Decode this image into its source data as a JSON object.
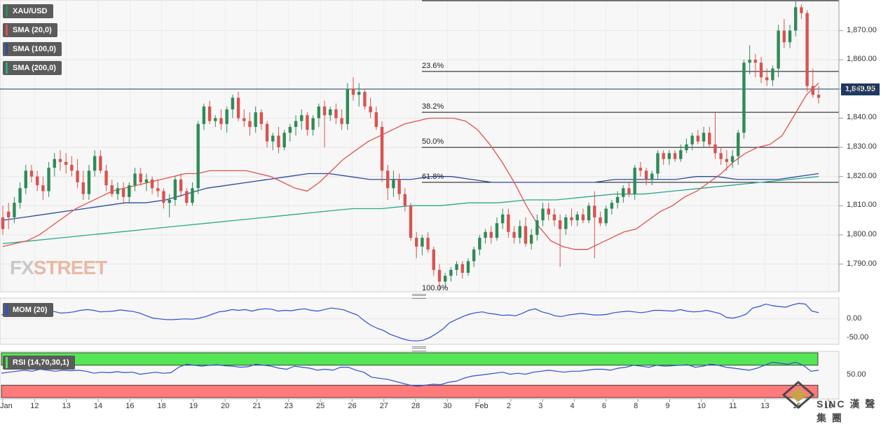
{
  "colors": {
    "sma20": "#e0524a",
    "sma100": "#2c4aa0",
    "sma200": "#2aa98a",
    "mom": "#2b4fd6",
    "rsi": "#2b4fd6",
    "bull": "#2e8b57",
    "bear": "#d9534f",
    "current_price_line": "#1f3864",
    "rsi_overbought_zone": "#55e655",
    "rsi_oversold_zone": "#ff7a7a"
  },
  "legend": {
    "symbol": "XAU/USD",
    "sma20": "SMA (20,0)",
    "sma100": "SMA (100,0)",
    "sma200": "SMA (200,0)",
    "mom": "MOM (20)",
    "rsi": "RSI (14,70,30,1)"
  },
  "current_price": "1,849.95",
  "watermark": {
    "fx": "FX",
    "street": "STREET"
  },
  "branding": "漢 聲 集 團",
  "branding_mark": "SINC",
  "chart_data": [
    {
      "type": "candlestick",
      "title": "XAU/USD",
      "ylim": [
        1781,
        1880
      ],
      "yticks": [
        1790,
        1800,
        1810,
        1820,
        1830,
        1840,
        1850,
        1860,
        1870
      ],
      "ytick_labels": [
        "1,790.00",
        "1,800.00",
        "1,810.00",
        "1,820.00",
        "1,830.00",
        "1,840.00",
        "1,850.00",
        "1,860.00",
        "1,870.00"
      ],
      "x_labels": [
        "Jan",
        "12",
        "13",
        "14",
        "16",
        "18",
        "19",
        "20",
        "21",
        "23",
        "25",
        "26",
        "27",
        "28",
        "30",
        "Feb",
        "2",
        "3",
        "4",
        "6",
        "8",
        "9",
        "10",
        "11",
        "13",
        "15",
        "16"
      ],
      "fibonacci": [
        {
          "label": "23.6%",
          "value": 1856
        },
        {
          "label": "38.2%",
          "value": 1842
        },
        {
          "label": "50.0%",
          "value": 1830
        },
        {
          "label": "61.8%",
          "value": 1818
        },
        {
          "label": "100.0%",
          "value": 1781
        }
      ],
      "top_line": 1880,
      "current_price": 1849.95,
      "ohlc": [
        [
          1806,
          1810,
          1800,
          1802
        ],
        [
          1808,
          1811,
          1802,
          1806
        ],
        [
          1806,
          1813,
          1804,
          1811
        ],
        [
          1811,
          1818,
          1809,
          1816
        ],
        [
          1816,
          1824,
          1814,
          1822
        ],
        [
          1822,
          1824,
          1818,
          1820
        ],
        [
          1820,
          1822,
          1815,
          1817
        ],
        [
          1817,
          1820,
          1812,
          1815
        ],
        [
          1815,
          1825,
          1813,
          1823
        ],
        [
          1823,
          1828,
          1820,
          1826
        ],
        [
          1826,
          1829,
          1822,
          1825
        ],
        [
          1825,
          1828,
          1821,
          1824
        ],
        [
          1824,
          1827,
          1820,
          1822
        ],
        [
          1822,
          1826,
          1816,
          1818
        ],
        [
          1818,
          1822,
          1812,
          1814
        ],
        [
          1814,
          1824,
          1812,
          1822
        ],
        [
          1822,
          1829,
          1820,
          1827
        ],
        [
          1827,
          1829,
          1821,
          1822
        ],
        [
          1822,
          1824,
          1815,
          1817
        ],
        [
          1817,
          1819,
          1813,
          1814
        ],
        [
          1814,
          1818,
          1812,
          1816
        ],
        [
          1816,
          1818,
          1811,
          1813
        ],
        [
          1813,
          1818,
          1811,
          1817
        ],
        [
          1817,
          1823,
          1815,
          1821
        ],
        [
          1821,
          1823,
          1817,
          1818
        ],
        [
          1818,
          1821,
          1815,
          1819
        ],
        [
          1819,
          1820,
          1814,
          1816
        ],
        [
          1816,
          1819,
          1813,
          1815
        ],
        [
          1815,
          1816,
          1809,
          1811
        ],
        [
          1811,
          1814,
          1806,
          1812
        ],
        [
          1812,
          1820,
          1810,
          1819
        ],
        [
          1819,
          1821,
          1813,
          1815
        ],
        [
          1815,
          1816,
          1810,
          1811
        ],
        [
          1811,
          1818,
          1810,
          1816
        ],
        [
          1816,
          1839,
          1814,
          1838
        ],
        [
          1838,
          1845,
          1836,
          1844
        ],
        [
          1844,
          1846,
          1838,
          1839
        ],
        [
          1839,
          1841,
          1837,
          1840
        ],
        [
          1840,
          1843,
          1836,
          1838
        ],
        [
          1838,
          1844,
          1835,
          1843
        ],
        [
          1843,
          1848,
          1840,
          1847
        ],
        [
          1847,
          1849,
          1839,
          1840
        ],
        [
          1840,
          1843,
          1837,
          1839
        ],
        [
          1839,
          1842,
          1834,
          1837
        ],
        [
          1837,
          1844,
          1835,
          1842
        ],
        [
          1842,
          1843,
          1836,
          1838
        ],
        [
          1838,
          1839,
          1830,
          1832
        ],
        [
          1832,
          1835,
          1829,
          1834
        ],
        [
          1834,
          1837,
          1828,
          1830
        ],
        [
          1830,
          1836,
          1829,
          1835
        ],
        [
          1835,
          1838,
          1832,
          1837
        ],
        [
          1837,
          1841,
          1834,
          1839
        ],
        [
          1839,
          1843,
          1836,
          1841
        ],
        [
          1841,
          1842,
          1834,
          1836
        ],
        [
          1836,
          1841,
          1834,
          1840
        ],
        [
          1840,
          1845,
          1837,
          1844
        ],
        [
          1844,
          1846,
          1830,
          1841
        ],
        [
          1841,
          1844,
          1839,
          1843
        ],
        [
          1843,
          1845,
          1838,
          1840
        ],
        [
          1840,
          1843,
          1836,
          1838
        ],
        [
          1838,
          1852,
          1836,
          1850
        ],
        [
          1850,
          1854,
          1846,
          1848
        ],
        [
          1848,
          1852,
          1844,
          1849
        ],
        [
          1849,
          1850,
          1843,
          1844
        ],
        [
          1844,
          1847,
          1840,
          1842
        ],
        [
          1842,
          1844,
          1836,
          1837
        ],
        [
          1837,
          1839,
          1818,
          1822
        ],
        [
          1822,
          1824,
          1812,
          1816
        ],
        [
          1816,
          1822,
          1813,
          1819
        ],
        [
          1819,
          1821,
          1812,
          1814
        ],
        [
          1814,
          1816,
          1808,
          1810
        ],
        [
          1810,
          1811,
          1798,
          1799
        ],
        [
          1799,
          1801,
          1792,
          1796
        ],
        [
          1796,
          1800,
          1793,
          1799
        ],
        [
          1799,
          1801,
          1794,
          1795
        ],
        [
          1795,
          1796,
          1786,
          1788
        ],
        [
          1788,
          1790,
          1781,
          1784
        ],
        [
          1784,
          1787,
          1782,
          1786
        ],
        [
          1786,
          1789,
          1784,
          1788
        ],
        [
          1788,
          1791,
          1786,
          1790
        ],
        [
          1790,
          1791,
          1785,
          1787
        ],
        [
          1787,
          1792,
          1786,
          1791
        ],
        [
          1791,
          1796,
          1789,
          1795
        ],
        [
          1795,
          1800,
          1793,
          1799
        ],
        [
          1799,
          1802,
          1797,
          1801
        ],
        [
          1801,
          1803,
          1797,
          1799
        ],
        [
          1799,
          1806,
          1798,
          1804
        ],
        [
          1804,
          1809,
          1802,
          1807
        ],
        [
          1807,
          1809,
          1799,
          1801
        ],
        [
          1801,
          1803,
          1797,
          1799
        ],
        [
          1799,
          1805,
          1797,
          1803
        ],
        [
          1803,
          1806,
          1796,
          1797
        ],
        [
          1797,
          1802,
          1795,
          1800
        ],
        [
          1800,
          1807,
          1798,
          1805
        ],
        [
          1805,
          1811,
          1803,
          1809
        ],
        [
          1809,
          1811,
          1805,
          1807
        ],
        [
          1807,
          1809,
          1803,
          1805
        ],
        [
          1805,
          1807,
          1789,
          1802
        ],
        [
          1802,
          1807,
          1800,
          1806
        ],
        [
          1806,
          1809,
          1803,
          1805
        ],
        [
          1805,
          1808,
          1803,
          1807
        ],
        [
          1807,
          1809,
          1804,
          1805
        ],
        [
          1805,
          1811,
          1804,
          1810
        ],
        [
          1810,
          1815,
          1792,
          1806
        ],
        [
          1806,
          1808,
          1803,
          1804
        ],
        [
          1804,
          1810,
          1803,
          1809
        ],
        [
          1809,
          1812,
          1807,
          1811
        ],
        [
          1811,
          1815,
          1809,
          1813
        ],
        [
          1813,
          1817,
          1811,
          1816
        ],
        [
          1816,
          1818,
          1813,
          1814
        ],
        [
          1814,
          1824,
          1812,
          1823
        ],
        [
          1823,
          1825,
          1820,
          1822
        ],
        [
          1822,
          1823,
          1817,
          1819
        ],
        [
          1819,
          1822,
          1817,
          1821
        ],
        [
          1821,
          1829,
          1819,
          1828
        ],
        [
          1828,
          1829,
          1824,
          1826
        ],
        [
          1826,
          1829,
          1824,
          1828
        ],
        [
          1828,
          1829,
          1825,
          1826
        ],
        [
          1826,
          1831,
          1825,
          1829
        ],
        [
          1829,
          1833,
          1828,
          1831
        ],
        [
          1831,
          1835,
          1829,
          1834
        ],
        [
          1834,
          1836,
          1831,
          1832
        ],
        [
          1832,
          1837,
          1830,
          1835
        ],
        [
          1835,
          1837,
          1830,
          1831
        ],
        [
          1831,
          1842,
          1826,
          1828
        ],
        [
          1828,
          1830,
          1824,
          1826
        ],
        [
          1826,
          1829,
          1822,
          1825
        ],
        [
          1825,
          1829,
          1823,
          1827
        ],
        [
          1827,
          1836,
          1824,
          1835
        ],
        [
          1835,
          1860,
          1833,
          1859
        ],
        [
          1859,
          1865,
          1855,
          1860
        ],
        [
          1860,
          1862,
          1854,
          1859
        ],
        [
          1859,
          1861,
          1852,
          1854
        ],
        [
          1854,
          1857,
          1851,
          1853
        ],
        [
          1853,
          1858,
          1851,
          1857
        ],
        [
          1857,
          1872,
          1854,
          1870
        ],
        [
          1870,
          1874,
          1864,
          1866
        ],
        [
          1866,
          1872,
          1864,
          1870
        ],
        [
          1870,
          1880,
          1868,
          1878
        ],
        [
          1878,
          1879,
          1874,
          1876
        ],
        [
          1876,
          1877,
          1849,
          1851
        ],
        [
          1851,
          1857,
          1847,
          1848
        ],
        [
          1848,
          1851,
          1845,
          1847
        ]
      ],
      "sma20_values": [
        1796,
        1797,
        1798,
        1800,
        1803,
        1806,
        1809,
        1811,
        1813,
        1815,
        1816,
        1817,
        1818,
        1819,
        1820,
        1821,
        1821,
        1822,
        1822,
        1822,
        1822,
        1821,
        1820,
        1818,
        1816,
        1815,
        1818,
        1822,
        1826,
        1829,
        1832,
        1834,
        1836,
        1838,
        1839,
        1840,
        1840,
        1840,
        1839,
        1836,
        1831,
        1825,
        1818,
        1810,
        1803,
        1798,
        1796,
        1795,
        1795,
        1797,
        1799,
        1801,
        1802,
        1805,
        1808,
        1810,
        1813,
        1815,
        1818,
        1821,
        1825,
        1828,
        1830,
        1831,
        1834,
        1841,
        1848,
        1852
      ],
      "sma100_values": [
        1805,
        1806,
        1807,
        1808,
        1809,
        1810,
        1811,
        1811,
        1812,
        1814,
        1816,
        1817,
        1818,
        1819,
        1820,
        1821,
        1821,
        1820,
        1819,
        1819,
        1819,
        1820,
        1820,
        1819,
        1818,
        1818,
        1818,
        1818,
        1818,
        1818,
        1819,
        1819,
        1819,
        1819,
        1820,
        1820,
        1819,
        1819,
        1819,
        1820,
        1821
      ],
      "sma200_values": [
        1797,
        1798,
        1799,
        1800,
        1801,
        1802,
        1803,
        1804,
        1805,
        1806,
        1807,
        1808,
        1809,
        1809,
        1810,
        1810,
        1811,
        1811,
        1812,
        1812,
        1813,
        1814,
        1814,
        1815,
        1816,
        1817,
        1818,
        1819,
        1820
      ]
    },
    {
      "type": "line",
      "title": "MOM (20)",
      "ylim": [
        -62,
        50
      ],
      "yticks": [
        0,
        -50
      ],
      "ytick_labels": [
        "0.00",
        "-50.00"
      ],
      "values": [
        10,
        14,
        18,
        20,
        19,
        18,
        21,
        22,
        19,
        15,
        16,
        18,
        22,
        24,
        22,
        18,
        19,
        20,
        23,
        21,
        19,
        15,
        8,
        2,
        0,
        -2,
        -2,
        -1,
        0,
        -1,
        2,
        6,
        12,
        18,
        20,
        24,
        22,
        24,
        20,
        24,
        26,
        25,
        20,
        22,
        21,
        24,
        26,
        22,
        20,
        24,
        28,
        26,
        23,
        16,
        10,
        -4,
        -16,
        -24,
        -30,
        -40,
        -46,
        -52,
        -56,
        -57,
        -55,
        -48,
        -38,
        -26,
        -10,
        -2,
        6,
        12,
        16,
        18,
        14,
        12,
        9,
        10,
        8,
        14,
        22,
        26,
        18,
        14,
        8,
        6,
        10,
        12,
        14,
        12,
        10,
        10,
        12,
        16,
        18,
        20,
        18,
        16,
        18,
        22,
        22,
        21,
        20,
        24,
        20,
        18,
        19,
        22,
        18,
        14,
        4,
        2,
        6,
        12,
        28,
        32,
        38,
        34,
        32,
        30,
        36,
        40,
        38,
        20,
        16
      ]
    },
    {
      "type": "line",
      "title": "RSI (14,70,30,1)",
      "ylim": [
        5,
        95
      ],
      "yticks": [
        50
      ],
      "ytick_labels": [
        "50.00"
      ],
      "overbought": 70,
      "oversold": 30,
      "values": [
        54,
        56,
        58,
        60,
        58,
        62,
        60,
        58,
        60,
        59,
        60,
        58,
        54,
        56,
        55,
        57,
        55,
        56,
        52,
        54,
        56,
        54,
        55,
        66,
        72,
        70,
        68,
        70,
        71,
        69,
        68,
        66,
        67,
        72,
        70,
        68,
        64,
        62,
        68,
        66,
        64,
        60,
        62,
        60,
        66,
        66,
        60,
        56,
        46,
        44,
        42,
        38,
        34,
        30,
        28,
        30,
        32,
        31,
        36,
        38,
        44,
        48,
        50,
        52,
        54,
        56,
        52,
        54,
        52,
        56,
        58,
        60,
        58,
        56,
        58,
        58,
        60,
        62,
        62,
        60,
        64,
        66,
        70,
        68,
        66,
        70,
        68,
        69,
        70,
        71,
        66,
        68,
        72,
        70,
        66,
        64,
        62,
        60,
        64,
        70,
        76,
        74,
        72,
        76,
        70,
        58,
        60
      ]
    }
  ]
}
